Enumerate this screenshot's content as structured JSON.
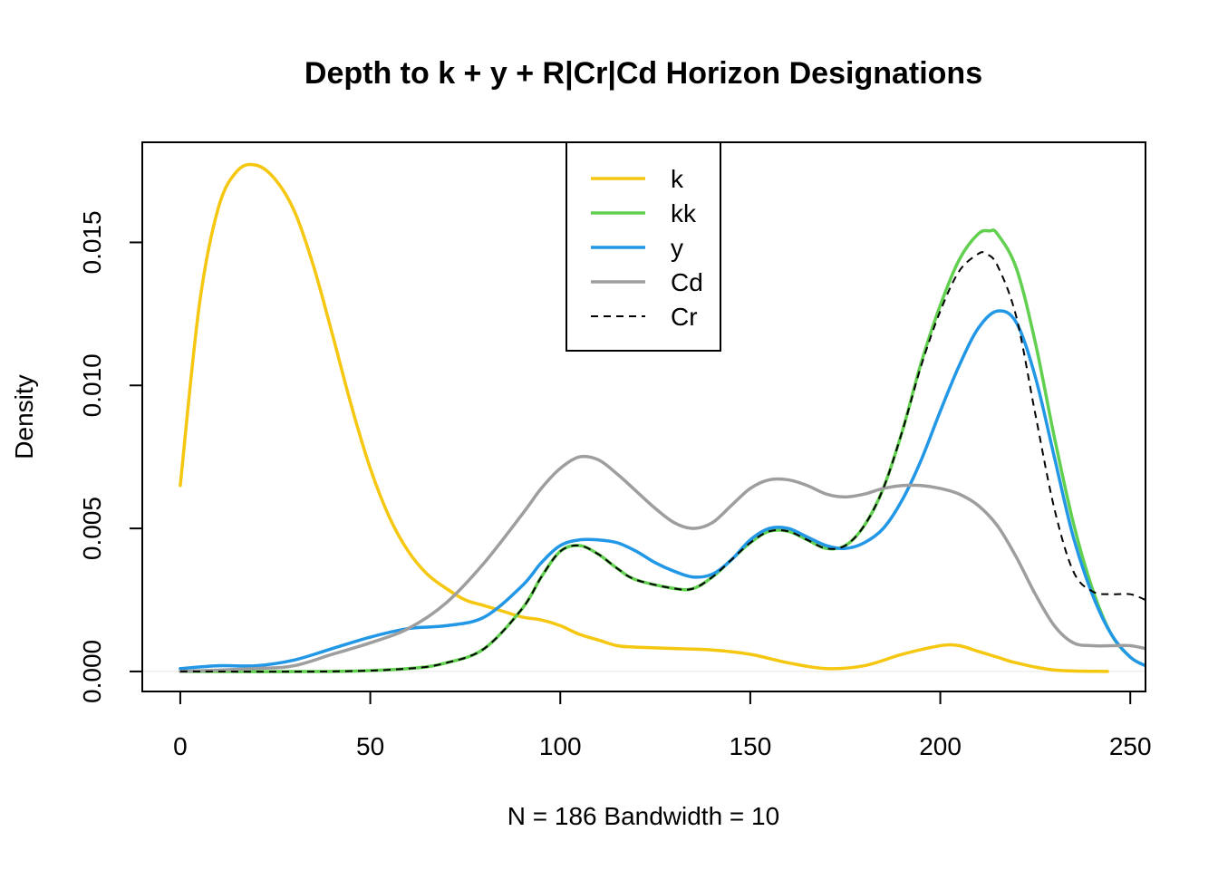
{
  "chart_data": {
    "type": "line",
    "title": "Depth to k + y + R|Cr|Cd Horizon Designations",
    "xlabel": "N = 186   Bandwidth = 10",
    "ylabel": "Density",
    "xlim": [
      -10,
      254
    ],
    "ylim": [
      -0.0007,
      0.0185
    ],
    "x_ticks": [
      0,
      50,
      100,
      150,
      200,
      250
    ],
    "x_tick_labels": [
      "0",
      "50",
      "100",
      "150",
      "200",
      "250"
    ],
    "y_ticks": [
      0.0,
      0.005,
      0.01,
      0.015
    ],
    "y_tick_labels": [
      "0.000",
      "0.005",
      "0.010",
      "0.015"
    ],
    "grid": false,
    "legend_position": "top-center",
    "series": [
      {
        "name": "k",
        "color": "#F5C710",
        "dash": "solid",
        "x": [
          0,
          5,
          10,
          15,
          20,
          25,
          30,
          35,
          40,
          45,
          50,
          55,
          60,
          65,
          70,
          75,
          80,
          85,
          90,
          95,
          100,
          105,
          110,
          115,
          120,
          130,
          140,
          150,
          160,
          170,
          180,
          190,
          200,
          205,
          210,
          215,
          220,
          230,
          244
        ],
        "y": [
          0.0065,
          0.0128,
          0.0162,
          0.0175,
          0.0177,
          0.0172,
          0.0161,
          0.0142,
          0.0118,
          0.0093,
          0.0071,
          0.0054,
          0.0042,
          0.0034,
          0.0029,
          0.0025,
          0.0023,
          0.0021,
          0.0019,
          0.0018,
          0.0016,
          0.0013,
          0.0011,
          0.0009,
          0.00085,
          0.0008,
          0.00075,
          0.0006,
          0.0003,
          0.0001,
          0.0002,
          0.0006,
          0.0009,
          0.0009,
          0.0007,
          0.0005,
          0.0003,
          5e-05,
          0.0
        ]
      },
      {
        "name": "kk",
        "color": "#61D04F",
        "dash": "solid",
        "x": [
          0,
          40,
          60,
          70,
          80,
          90,
          95,
          100,
          105,
          110,
          115,
          120,
          130,
          135,
          140,
          145,
          150,
          155,
          160,
          165,
          170,
          175,
          180,
          185,
          190,
          195,
          200,
          205,
          210,
          213,
          215,
          220,
          225,
          230,
          235,
          240,
          245,
          250,
          254
        ],
        "y": [
          0.0,
          0.0,
          0.0001,
          0.0003,
          0.0008,
          0.0022,
          0.0033,
          0.0042,
          0.0044,
          0.0041,
          0.0036,
          0.0032,
          0.0029,
          0.0029,
          0.0033,
          0.0039,
          0.0045,
          0.0049,
          0.0049,
          0.0046,
          0.0043,
          0.0044,
          0.0051,
          0.0064,
          0.0084,
          0.0108,
          0.0128,
          0.0144,
          0.0153,
          0.0154,
          0.0153,
          0.0141,
          0.0115,
          0.0082,
          0.0052,
          0.0029,
          0.0013,
          0.0005,
          0.0002
        ]
      },
      {
        "name": "y",
        "color": "#2297E6",
        "dash": "solid",
        "x": [
          0,
          10,
          20,
          30,
          40,
          50,
          60,
          70,
          80,
          90,
          95,
          100,
          105,
          110,
          115,
          120,
          125,
          130,
          135,
          140,
          145,
          150,
          155,
          160,
          165,
          170,
          175,
          180,
          185,
          190,
          195,
          200,
          205,
          210,
          215,
          220,
          225,
          230,
          235,
          240,
          245,
          250,
          254
        ],
        "y": [
          0.0001,
          0.0002,
          0.0002,
          0.0004,
          0.0008,
          0.0012,
          0.0015,
          0.0016,
          0.0019,
          0.003,
          0.0038,
          0.0044,
          0.0046,
          0.0046,
          0.0045,
          0.0042,
          0.0038,
          0.0035,
          0.0033,
          0.0034,
          0.0039,
          0.0046,
          0.005,
          0.005,
          0.0047,
          0.0044,
          0.0043,
          0.0045,
          0.005,
          0.006,
          0.0074,
          0.0091,
          0.0107,
          0.012,
          0.0126,
          0.0122,
          0.0103,
          0.0075,
          0.0047,
          0.0027,
          0.0013,
          0.0005,
          0.0002
        ]
      },
      {
        "name": "Cd",
        "color": "#9E9E9E",
        "dash": "solid",
        "x": [
          0,
          20,
          30,
          40,
          50,
          60,
          70,
          80,
          90,
          95,
          100,
          105,
          110,
          115,
          120,
          125,
          130,
          135,
          140,
          145,
          150,
          155,
          160,
          165,
          170,
          175,
          180,
          185,
          190,
          195,
          200,
          205,
          210,
          215,
          220,
          225,
          230,
          235,
          240,
          245,
          250,
          254
        ],
        "y": [
          0.0,
          0.0001,
          0.0002,
          0.0006,
          0.001,
          0.0015,
          0.0024,
          0.0038,
          0.0055,
          0.0064,
          0.0071,
          0.0075,
          0.0074,
          0.0069,
          0.0063,
          0.0057,
          0.0052,
          0.005,
          0.0052,
          0.0058,
          0.0064,
          0.0067,
          0.0067,
          0.0065,
          0.0062,
          0.0061,
          0.0062,
          0.0064,
          0.0065,
          0.0065,
          0.0064,
          0.0062,
          0.0058,
          0.0051,
          0.004,
          0.0027,
          0.0016,
          0.001,
          0.0009,
          0.0009,
          0.0009,
          0.0008
        ]
      },
      {
        "name": "Cr",
        "color": "#000000",
        "dash": "dashed",
        "x": [
          0,
          40,
          60,
          70,
          80,
          90,
          95,
          100,
          105,
          110,
          115,
          120,
          130,
          135,
          140,
          145,
          150,
          155,
          160,
          165,
          170,
          175,
          180,
          185,
          190,
          195,
          200,
          205,
          210,
          212,
          215,
          220,
          225,
          230,
          235,
          240,
          245,
          250,
          254
        ],
        "y": [
          0.0,
          0.0,
          0.0001,
          0.0003,
          0.0008,
          0.0022,
          0.0033,
          0.0042,
          0.0044,
          0.0041,
          0.0036,
          0.0032,
          0.0029,
          0.0029,
          0.0033,
          0.0039,
          0.0045,
          0.0049,
          0.0049,
          0.0046,
          0.0043,
          0.0044,
          0.0051,
          0.0064,
          0.0084,
          0.0107,
          0.0126,
          0.014,
          0.0146,
          0.0146,
          0.0142,
          0.0124,
          0.009,
          0.0057,
          0.0035,
          0.0028,
          0.0027,
          0.0027,
          0.0025
        ]
      }
    ]
  }
}
